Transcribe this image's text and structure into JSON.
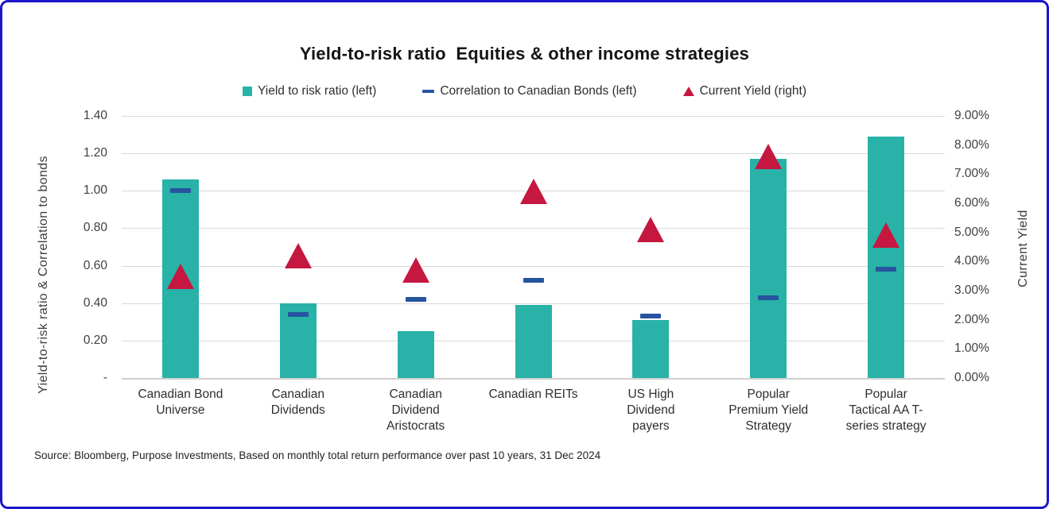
{
  "title": "Yield-to-risk ratio  Equities & other income strategies",
  "source": "Source: Bloomberg, Purpose Investments, Based on monthly total return performance over past 10 years, 31 Dec 2024",
  "colors": {
    "frame_border": "#1c15cc",
    "bar_teal": "#29b2a8",
    "dash_navy": "#27549f",
    "triangle_red": "#c5173f",
    "gridline": "#d9d9d9",
    "axis_line": "#cfcfcf"
  },
  "legend": [
    {
      "label": "Yield to risk ratio (left)",
      "marker": "square",
      "color": "#29b2a8"
    },
    {
      "label": "Correlation to Canadian Bonds (left)",
      "marker": "dash",
      "color": "#27549f"
    },
    {
      "label": "Current Yield (right)",
      "marker": "triangle",
      "color": "#c5173f"
    }
  ],
  "left_axis": {
    "title": "Yield-to-risk ratio & Correlation to bonds",
    "ticks": [
      "1.40",
      "1.20",
      "1.00",
      "0.80",
      "0.60",
      "0.40",
      "0.20",
      "-"
    ],
    "min": 0,
    "max": 1.4
  },
  "right_axis": {
    "title": "Current Yield",
    "ticks": [
      "9.00%",
      "8.00%",
      "7.00%",
      "6.00%",
      "5.00%",
      "4.00%",
      "3.00%",
      "2.00%",
      "1.00%",
      "0.00%"
    ],
    "min": 0,
    "max": 9
  },
  "chart_data": {
    "type": "bar",
    "subtype": "combo bar + dash markers + triangle markers, dual axis",
    "title": "Yield-to-risk ratio  Equities & other income strategies",
    "categories": [
      "Canadian Bond Universe",
      "Canadian Dividends",
      "Canadian Dividend Aristocrats",
      "Canadian REITs",
      "US High Dividend payers",
      "Popular Premium Yield Strategy",
      "Popular Tactical AA T-series strategy"
    ],
    "category_label_lines": [
      [
        "Canadian Bond",
        "Universe"
      ],
      [
        "Canadian",
        "Dividends"
      ],
      [
        "Canadian",
        "Dividend",
        "Aristocrats"
      ],
      [
        "Canadian REITs"
      ],
      [
        "US High",
        "Dividend",
        "payers"
      ],
      [
        "Popular",
        "Premium Yield",
        "Strategy"
      ],
      [
        "Popular",
        "Tactical AA T-",
        "series strategy"
      ]
    ],
    "series": [
      {
        "name": "Yield to risk ratio (left)",
        "type": "bar",
        "axis": "left",
        "color": "#29b2a8",
        "values": [
          1.06,
          0.4,
          0.25,
          0.39,
          0.31,
          1.17,
          1.29
        ]
      },
      {
        "name": "Correlation to Canadian Bonds (left)",
        "type": "dash",
        "axis": "left",
        "color": "#27549f",
        "values": [
          1.0,
          0.34,
          0.42,
          0.52,
          0.33,
          0.43,
          0.58
        ]
      },
      {
        "name": "Current Yield (right)",
        "type": "triangle",
        "axis": "right",
        "color": "#c5173f",
        "values_percent": [
          3.5,
          4.2,
          3.7,
          6.4,
          5.1,
          7.6,
          4.9
        ]
      }
    ],
    "ylabel_left": "Yield-to-risk ratio & Correlation to bonds",
    "ylabel_right": "Current Yield",
    "ylim_left": [
      0,
      1.4
    ],
    "ylim_right": [
      0,
      9
    ],
    "grid": "horizontal",
    "legend_position": "top"
  }
}
